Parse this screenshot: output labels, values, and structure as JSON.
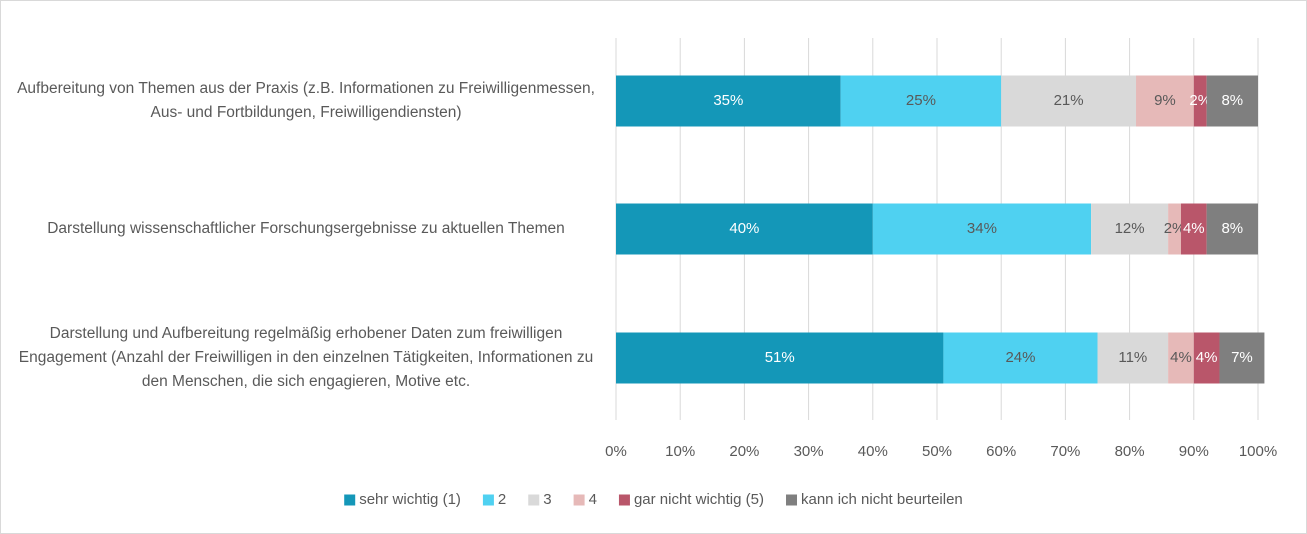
{
  "chart_data": {
    "type": "stacked-bar-horizontal",
    "categories": [
      "Aufbereitung von Themen aus der Praxis (z.B. Informationen zu Freiwilligenmessen, Aus- und Fortbildungen, Freiwilligendiensten)",
      "Darstellung wissenschaftlicher Forschungsergebnisse zu aktuellen Themen",
      "Darstellung und Aufbereitung regelmäßig erhobener Daten zum freiwilligen Engagement (Anzahl der Freiwilligen in den einzelnen Tätigkeiten, Informationen zu den Menschen, die sich engagieren, Motive etc."
    ],
    "series": [
      {
        "name": "sehr wichtig (1)",
        "color": "#1497b8",
        "values": [
          35,
          40,
          51
        ],
        "value_labels": [
          "35%",
          "40%",
          "51%"
        ]
      },
      {
        "name": "2",
        "color": "#4fd1f1",
        "values": [
          25,
          34,
          24
        ],
        "value_labels": [
          "25%",
          "34%",
          "24%"
        ]
      },
      {
        "name": "3",
        "color": "#d9d9d9",
        "values": [
          21,
          12,
          11
        ],
        "value_labels": [
          "21%",
          "12%",
          "11%"
        ]
      },
      {
        "name": "4",
        "color": "#e6b9b8",
        "values": [
          9,
          2,
          4
        ],
        "value_labels": [
          "9%",
          "2%",
          "4%"
        ]
      },
      {
        "name": "gar nicht wichtig (5)",
        "color": "#b9566a",
        "values": [
          2,
          4,
          4
        ],
        "value_labels": [
          "2%",
          "4%",
          "4%"
        ]
      },
      {
        "name": "kann ich nicht beurteilen",
        "color": "#7f7f7f",
        "values": [
          8,
          8,
          7
        ],
        "value_labels": [
          "8%",
          "8%",
          "7%"
        ]
      }
    ],
    "xlim": [
      0,
      100
    ],
    "xticks": [
      {
        "value": 0,
        "label": "0%"
      },
      {
        "value": 10,
        "label": "10%"
      },
      {
        "value": 20,
        "label": "20%"
      },
      {
        "value": 30,
        "label": "30%"
      },
      {
        "value": 40,
        "label": "40%"
      },
      {
        "value": 50,
        "label": "50%"
      },
      {
        "value": 60,
        "label": "60%"
      },
      {
        "value": 70,
        "label": "70%"
      },
      {
        "value": 80,
        "label": "80%"
      },
      {
        "value": 90,
        "label": "90%"
      },
      {
        "value": 100,
        "label": "100%"
      }
    ],
    "grid": true,
    "legend": "bottom"
  }
}
